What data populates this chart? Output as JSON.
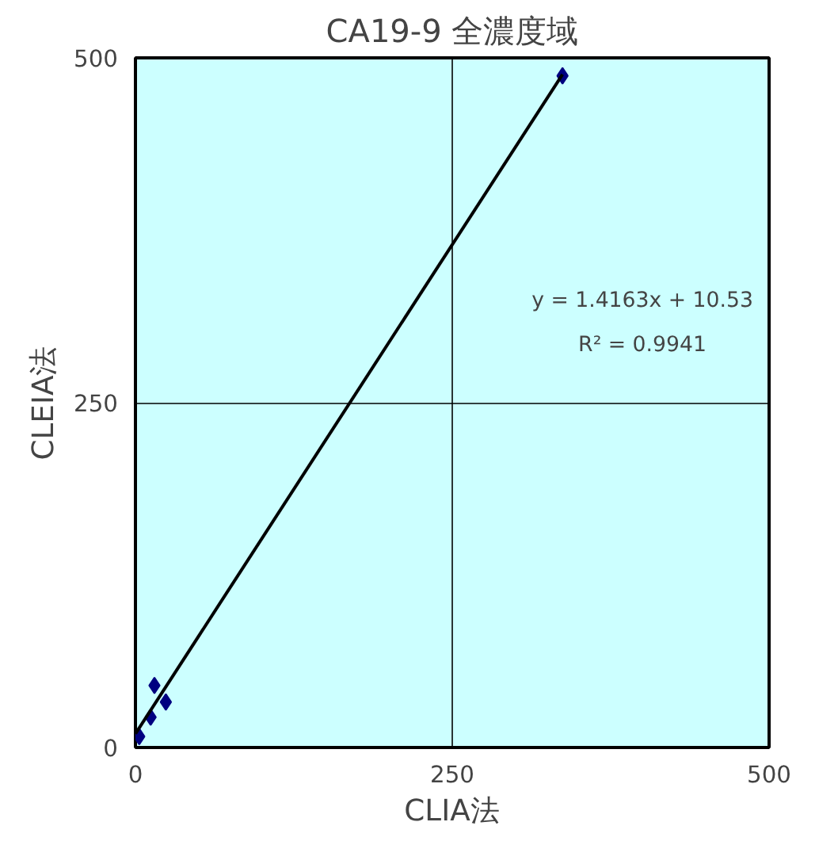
{
  "chart_data": {
    "type": "scatter",
    "title": "CA19-9 全濃度域",
    "xlabel": "CLIA法",
    "ylabel": "CLEIA法",
    "xlim": [
      0,
      500
    ],
    "ylim": [
      0,
      500
    ],
    "xticks": [
      0,
      250,
      500
    ],
    "yticks": [
      0,
      250,
      500
    ],
    "grid": true,
    "series": [
      {
        "color": "#000080",
        "marker": "diamond",
        "x": [
          3,
          12,
          15,
          24,
          337
        ],
        "values": [
          8,
          22,
          45,
          33,
          487
        ]
      },
      {
        "type": "line",
        "marker": "none",
        "color": "#000000",
        "x": [
          0,
          337
        ],
        "values": [
          10,
          488
        ]
      }
    ],
    "annotations": [
      "y = 1.4163x + 10.53",
      "R² = 0.9941"
    ]
  }
}
